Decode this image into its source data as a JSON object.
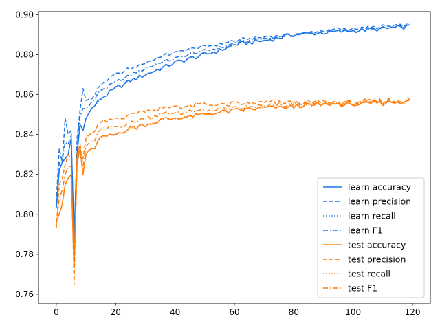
{
  "chart_data": {
    "type": "line",
    "title": "",
    "xlabel": "",
    "ylabel": "",
    "xlim": [
      -6,
      126
    ],
    "ylim": [
      0.7555,
      0.9015
    ],
    "xticks": [
      0,
      20,
      40,
      60,
      80,
      100,
      120
    ],
    "yticks": [
      0.76,
      0.78,
      0.8,
      0.82,
      0.84,
      0.86,
      0.88,
      0.9
    ],
    "ytick_labels": [
      "0.76",
      "0.78",
      "0.80",
      "0.82",
      "0.84",
      "0.86",
      "0.88",
      "0.90"
    ],
    "grid": false,
    "legend_position": "lower-right",
    "colors": {
      "learn": "#1f77e4",
      "test": "#ff7f0e"
    },
    "x_range": [
      0,
      119
    ],
    "series": [
      {
        "name": "learn accuracy",
        "group": "learn",
        "style": "solid",
        "anchors": [
          [
            0,
            0.803
          ],
          [
            1,
            0.822
          ],
          [
            2,
            0.826
          ],
          [
            3,
            0.828
          ],
          [
            4,
            0.83
          ],
          [
            5,
            0.838
          ],
          [
            6,
            0.79
          ],
          [
            7,
            0.83
          ],
          [
            8,
            0.845
          ],
          [
            9,
            0.842
          ],
          [
            10,
            0.848
          ],
          [
            12,
            0.853
          ],
          [
            15,
            0.858
          ],
          [
            20,
            0.863
          ],
          [
            25,
            0.867
          ],
          [
            30,
            0.87
          ],
          [
            35,
            0.873
          ],
          [
            40,
            0.876
          ],
          [
            45,
            0.878
          ],
          [
            50,
            0.88
          ],
          [
            55,
            0.882
          ],
          [
            60,
            0.885
          ],
          [
            70,
            0.887
          ],
          [
            80,
            0.89
          ],
          [
            90,
            0.891
          ],
          [
            100,
            0.892
          ],
          [
            110,
            0.893
          ],
          [
            119,
            0.894
          ]
        ]
      },
      {
        "name": "learn precision",
        "group": "learn",
        "style": "dashed",
        "anchors": [
          [
            0,
            0.806
          ],
          [
            1,
            0.833
          ],
          [
            2,
            0.826
          ],
          [
            3,
            0.848
          ],
          [
            4,
            0.84
          ],
          [
            5,
            0.842
          ],
          [
            6,
            0.782
          ],
          [
            7,
            0.838
          ],
          [
            8,
            0.852
          ],
          [
            9,
            0.863
          ],
          [
            10,
            0.857
          ],
          [
            12,
            0.858
          ],
          [
            15,
            0.865
          ],
          [
            20,
            0.87
          ],
          [
            25,
            0.873
          ],
          [
            30,
            0.876
          ],
          [
            35,
            0.879
          ],
          [
            40,
            0.881
          ],
          [
            45,
            0.883
          ],
          [
            50,
            0.884
          ],
          [
            55,
            0.885
          ],
          [
            60,
            0.887
          ],
          [
            70,
            0.889
          ],
          [
            80,
            0.89
          ],
          [
            90,
            0.892
          ],
          [
            100,
            0.893
          ],
          [
            110,
            0.894
          ],
          [
            119,
            0.895
          ]
        ]
      },
      {
        "name": "learn recall",
        "group": "learn",
        "style": "dotted",
        "anchors": [
          [
            0,
            0.803
          ],
          [
            1,
            0.822
          ],
          [
            2,
            0.826
          ],
          [
            3,
            0.828
          ],
          [
            4,
            0.83
          ],
          [
            5,
            0.838
          ],
          [
            6,
            0.79
          ],
          [
            7,
            0.83
          ],
          [
            8,
            0.845
          ],
          [
            9,
            0.842
          ],
          [
            10,
            0.848
          ],
          [
            12,
            0.853
          ],
          [
            15,
            0.858
          ],
          [
            20,
            0.863
          ],
          [
            25,
            0.867
          ],
          [
            30,
            0.87
          ],
          [
            35,
            0.873
          ],
          [
            40,
            0.876
          ],
          [
            45,
            0.878
          ],
          [
            50,
            0.88
          ],
          [
            55,
            0.882
          ],
          [
            60,
            0.885
          ],
          [
            70,
            0.887
          ],
          [
            80,
            0.89
          ],
          [
            90,
            0.891
          ],
          [
            100,
            0.892
          ],
          [
            110,
            0.893
          ],
          [
            119,
            0.894
          ]
        ]
      },
      {
        "name": "learn F1",
        "group": "learn",
        "style": "dashdot",
        "anchors": [
          [
            0,
            0.804
          ],
          [
            1,
            0.826
          ],
          [
            2,
            0.827
          ],
          [
            3,
            0.836
          ],
          [
            4,
            0.835
          ],
          [
            5,
            0.84
          ],
          [
            6,
            0.786
          ],
          [
            7,
            0.834
          ],
          [
            8,
            0.849
          ],
          [
            9,
            0.853
          ],
          [
            10,
            0.853
          ],
          [
            12,
            0.856
          ],
          [
            15,
            0.862
          ],
          [
            20,
            0.866
          ],
          [
            25,
            0.87
          ],
          [
            30,
            0.873
          ],
          [
            35,
            0.876
          ],
          [
            40,
            0.878
          ],
          [
            45,
            0.88
          ],
          [
            50,
            0.882
          ],
          [
            55,
            0.883
          ],
          [
            60,
            0.886
          ],
          [
            70,
            0.888
          ],
          [
            80,
            0.89
          ],
          [
            90,
            0.891
          ],
          [
            100,
            0.892
          ],
          [
            110,
            0.893
          ],
          [
            119,
            0.894
          ]
        ]
      },
      {
        "name": "test accuracy",
        "group": "test",
        "style": "solid",
        "anchors": [
          [
            0,
            0.797
          ],
          [
            1,
            0.8
          ],
          [
            2,
            0.805
          ],
          [
            3,
            0.815
          ],
          [
            4,
            0.818
          ],
          [
            5,
            0.82
          ],
          [
            6,
            0.775
          ],
          [
            7,
            0.825
          ],
          [
            8,
            0.833
          ],
          [
            9,
            0.82
          ],
          [
            10,
            0.83
          ],
          [
            12,
            0.832
          ],
          [
            15,
            0.838
          ],
          [
            20,
            0.84
          ],
          [
            25,
            0.843
          ],
          [
            30,
            0.845
          ],
          [
            35,
            0.847
          ],
          [
            40,
            0.848
          ],
          [
            45,
            0.849
          ],
          [
            50,
            0.85
          ],
          [
            55,
            0.851
          ],
          [
            60,
            0.852
          ],
          [
            70,
            0.853
          ],
          [
            80,
            0.854
          ],
          [
            90,
            0.855
          ],
          [
            100,
            0.855
          ],
          [
            110,
            0.856
          ],
          [
            119,
            0.857
          ]
        ]
      },
      {
        "name": "test precision",
        "group": "test",
        "style": "dashed",
        "anchors": [
          [
            0,
            0.793
          ],
          [
            1,
            0.815
          ],
          [
            2,
            0.818
          ],
          [
            3,
            0.825
          ],
          [
            4,
            0.83
          ],
          [
            5,
            0.828
          ],
          [
            6,
            0.765
          ],
          [
            7,
            0.83
          ],
          [
            8,
            0.835
          ],
          [
            9,
            0.828
          ],
          [
            10,
            0.838
          ],
          [
            12,
            0.84
          ],
          [
            15,
            0.846
          ],
          [
            20,
            0.848
          ],
          [
            25,
            0.85
          ],
          [
            30,
            0.852
          ],
          [
            35,
            0.853
          ],
          [
            40,
            0.854
          ],
          [
            45,
            0.854
          ],
          [
            50,
            0.855
          ],
          [
            55,
            0.855
          ],
          [
            60,
            0.855
          ],
          [
            70,
            0.856
          ],
          [
            80,
            0.856
          ],
          [
            90,
            0.856
          ],
          [
            100,
            0.856
          ],
          [
            110,
            0.857
          ],
          [
            119,
            0.857
          ]
        ]
      },
      {
        "name": "test recall",
        "group": "test",
        "style": "dotted",
        "anchors": [
          [
            0,
            0.797
          ],
          [
            1,
            0.8
          ],
          [
            2,
            0.805
          ],
          [
            3,
            0.815
          ],
          [
            4,
            0.818
          ],
          [
            5,
            0.82
          ],
          [
            6,
            0.775
          ],
          [
            7,
            0.825
          ],
          [
            8,
            0.833
          ],
          [
            9,
            0.82
          ],
          [
            10,
            0.83
          ],
          [
            12,
            0.832
          ],
          [
            15,
            0.838
          ],
          [
            20,
            0.84
          ],
          [
            25,
            0.843
          ],
          [
            30,
            0.845
          ],
          [
            35,
            0.847
          ],
          [
            40,
            0.848
          ],
          [
            45,
            0.849
          ],
          [
            50,
            0.85
          ],
          [
            55,
            0.851
          ],
          [
            60,
            0.852
          ],
          [
            70,
            0.853
          ],
          [
            80,
            0.854
          ],
          [
            90,
            0.855
          ],
          [
            100,
            0.855
          ],
          [
            110,
            0.856
          ],
          [
            119,
            0.857
          ]
        ]
      },
      {
        "name": "test F1",
        "group": "test",
        "style": "dashdot",
        "anchors": [
          [
            0,
            0.795
          ],
          [
            1,
            0.808
          ],
          [
            2,
            0.812
          ],
          [
            3,
            0.82
          ],
          [
            4,
            0.824
          ],
          [
            5,
            0.824
          ],
          [
            6,
            0.77
          ],
          [
            7,
            0.828
          ],
          [
            8,
            0.834
          ],
          [
            9,
            0.824
          ],
          [
            10,
            0.834
          ],
          [
            12,
            0.836
          ],
          [
            15,
            0.842
          ],
          [
            20,
            0.844
          ],
          [
            25,
            0.846
          ],
          [
            30,
            0.848
          ],
          [
            35,
            0.85
          ],
          [
            40,
            0.851
          ],
          [
            45,
            0.851
          ],
          [
            50,
            0.852
          ],
          [
            55,
            0.853
          ],
          [
            60,
            0.853
          ],
          [
            70,
            0.854
          ],
          [
            80,
            0.855
          ],
          [
            90,
            0.855
          ],
          [
            100,
            0.856
          ],
          [
            110,
            0.856
          ],
          [
            119,
            0.857
          ]
        ]
      }
    ]
  }
}
